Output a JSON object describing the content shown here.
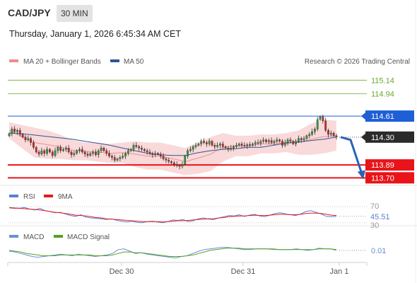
{
  "header": {
    "symbol": "CAD/JPY",
    "timeframe": "30 MIN",
    "datetime": "Thursday, January 1, 2026 6:45:34 AM CET"
  },
  "colors": {
    "green": "#6aaa2b",
    "blue_level": "#1e5fd6",
    "red_level": "#e8141a",
    "bollinger": "#f4b9b9",
    "ma50": "#2f5496",
    "rsi": "#5b7fd6",
    "nine_ma": "#e01b1b",
    "macd": "#6b8fd8",
    "macd_signal": "#56a020"
  },
  "chart_data": [
    {
      "type": "candlestick",
      "legend": [
        {
          "name": "MA 20 + Bollinger Bands",
          "color": "#f08a8a"
        },
        {
          "name": "MA 50",
          "color": "#2f5496"
        }
      ],
      "credit": "Research © 2026 Trading Central",
      "levels": [
        {
          "value": 115.14,
          "label": "115.14",
          "style": "green-line"
        },
        {
          "value": 114.94,
          "label": "114.94",
          "style": "green-line"
        },
        {
          "value": 114.61,
          "label": "114.61",
          "style": "blue-tag"
        },
        {
          "value": 114.3,
          "label": "114.30",
          "style": "last-price-tag"
        },
        {
          "value": 113.89,
          "label": "113.89",
          "style": "red-tag"
        },
        {
          "value": 113.7,
          "label": "113.70",
          "style": "red-tag"
        }
      ],
      "ylim": [
        113.62,
        115.31
      ],
      "x_ticks": [
        "Dec 30",
        "Dec 31",
        "Jan 1"
      ],
      "close": [
        114.35,
        114.42,
        114.38,
        114.4,
        114.34,
        114.3,
        114.26,
        114.28,
        114.22,
        114.15,
        114.08,
        114.05,
        114.1,
        114.06,
        114.12,
        114.08,
        114.03,
        114.1,
        114.15,
        114.1,
        114.12,
        114.14,
        114.08,
        114.04,
        114.06,
        114.1,
        114.12,
        114.08,
        114.05,
        114.03,
        114.06,
        114.08,
        114.04,
        114.1,
        114.14,
        114.1,
        114.06,
        114.02,
        114.0,
        113.96,
        113.98,
        114.0,
        114.02,
        114.06,
        114.1,
        114.12,
        114.18,
        114.16,
        114.14,
        114.12,
        114.1,
        114.08,
        114.06,
        114.04,
        114.06,
        114.05,
        114.02,
        113.98,
        113.96,
        113.94,
        113.92,
        113.9,
        113.88,
        113.87,
        113.9,
        114.02,
        114.1,
        114.12,
        114.16,
        114.18,
        114.2,
        114.24,
        114.22,
        114.2,
        114.24,
        114.18,
        114.16,
        114.18,
        114.2,
        114.16,
        114.14,
        114.12,
        114.14,
        114.16,
        114.18,
        114.2,
        114.18,
        114.17,
        114.19,
        114.18,
        114.2,
        114.22,
        114.21,
        114.24,
        114.26,
        114.23,
        114.25,
        114.22,
        114.24,
        114.26,
        114.24,
        114.18,
        114.22,
        114.26,
        114.24,
        114.2,
        114.24,
        114.28,
        114.26,
        114.28,
        114.32,
        114.34,
        114.38,
        114.42,
        114.56,
        114.6,
        114.54,
        114.4,
        114.34,
        114.36,
        114.32,
        114.3
      ],
      "ma50_line": [
        114.36,
        114.35,
        114.33,
        114.31,
        114.29,
        114.27,
        114.24,
        114.21,
        114.18,
        114.14,
        114.1,
        114.06,
        114.04,
        114.03,
        114.03,
        114.07,
        114.1,
        114.12,
        114.13,
        114.15,
        114.15,
        114.18,
        114.21,
        114.23,
        114.25,
        114.27,
        114.3
      ],
      "bollinger_upper": [
        114.52,
        114.48,
        114.44,
        114.4,
        114.34,
        114.26,
        114.22,
        114.22,
        114.2,
        114.22,
        114.24,
        114.22,
        114.22,
        114.18,
        114.14,
        114.22,
        114.3,
        114.36,
        114.32,
        114.32,
        114.34,
        114.34,
        114.36,
        114.4,
        114.5,
        114.56,
        114.54
      ],
      "bollinger_lower": [
        114.28,
        114.14,
        114.0,
        113.98,
        113.98,
        113.96,
        113.96,
        113.94,
        113.92,
        113.92,
        113.86,
        113.82,
        113.82,
        113.78,
        113.74,
        113.76,
        113.8,
        113.94,
        114.02,
        114.02,
        114.06,
        114.06,
        114.08,
        114.04,
        114.04,
        114.06,
        114.1
      ]
    },
    {
      "type": "line",
      "title": "RSI",
      "legend": [
        {
          "name": "RSI",
          "color": "#5b7fd6"
        },
        {
          "name": "9MA",
          "color": "#e01b1b"
        }
      ],
      "ylim": [
        28,
        72
      ],
      "reference_lines": [
        70,
        30
      ],
      "tick_labels": [
        "70",
        "45.51",
        "30"
      ],
      "series": [
        {
          "name": "RSI",
          "values": [
            68,
            67,
            66,
            68,
            64,
            62,
            66,
            60,
            58,
            55,
            56,
            52,
            48,
            46,
            50,
            44,
            42,
            41,
            40,
            38,
            40,
            36,
            34,
            32,
            34,
            31,
            30,
            33,
            34,
            32,
            30,
            33,
            37,
            36,
            38,
            33,
            35,
            40,
            42,
            39,
            38,
            42,
            45,
            48,
            47,
            50,
            46,
            49,
            51,
            47,
            45,
            49,
            53,
            55,
            52,
            50,
            48,
            52,
            58,
            60,
            56,
            52,
            46,
            45,
            46
          ]
        },
        {
          "name": "9MA",
          "values": [
            67,
            66,
            66,
            65,
            64,
            63,
            62,
            60,
            58,
            56,
            55,
            53,
            51,
            49,
            48,
            47,
            45,
            43,
            42,
            40,
            39,
            38,
            37,
            36,
            35,
            34,
            33,
            33,
            33,
            33,
            32,
            33,
            34,
            35,
            35,
            36,
            37,
            38,
            39,
            40,
            40,
            42,
            43,
            45,
            46,
            47,
            47,
            48,
            49,
            48,
            48,
            49,
            50,
            51,
            51,
            50,
            50,
            51,
            53,
            54,
            54,
            53,
            51,
            49,
            48
          ]
        }
      ]
    },
    {
      "type": "line",
      "title": "MACD",
      "legend": [
        {
          "name": "MACD",
          "color": "#6b8fd8"
        },
        {
          "name": "MACD Signal",
          "color": "#56a020"
        }
      ],
      "ylim": [
        -0.13,
        0.13
      ],
      "tick_labels": [
        "0.01"
      ],
      "series": [
        {
          "name": "MACD",
          "values": [
            0.0,
            -0.01,
            -0.03,
            -0.05,
            -0.07,
            -0.08,
            -0.07,
            -0.06,
            -0.05,
            -0.04,
            -0.05,
            -0.06,
            -0.04,
            -0.05,
            -0.06,
            -0.07,
            -0.06,
            -0.05,
            -0.03,
            0.02,
            0.03,
            0.0,
            -0.03,
            -0.02,
            -0.04,
            -0.05,
            -0.06,
            -0.07,
            -0.08,
            -0.09,
            -0.07,
            -0.06,
            -0.03,
            0.0,
            0.02,
            0.03,
            0.04,
            0.05,
            0.05,
            0.04,
            0.03,
            0.02,
            0.02,
            0.03,
            0.03,
            0.03,
            0.02,
            0.02,
            0.02,
            0.02,
            0.03,
            0.02,
            0.01,
            0.02,
            0.04,
            0.03,
            0.03,
            0.01
          ]
        },
        {
          "name": "MACD Signal",
          "values": [
            0.01,
            0.0,
            -0.01,
            -0.03,
            -0.04,
            -0.05,
            -0.06,
            -0.06,
            -0.06,
            -0.05,
            -0.05,
            -0.05,
            -0.05,
            -0.05,
            -0.05,
            -0.06,
            -0.06,
            -0.06,
            -0.05,
            -0.03,
            -0.01,
            -0.01,
            -0.02,
            -0.02,
            -0.03,
            -0.04,
            -0.05,
            -0.06,
            -0.07,
            -0.07,
            -0.07,
            -0.06,
            -0.05,
            -0.03,
            -0.01,
            0.01,
            0.02,
            0.03,
            0.04,
            0.04,
            0.04,
            0.03,
            0.03,
            0.03,
            0.03,
            0.03,
            0.03,
            0.02,
            0.02,
            0.02,
            0.02,
            0.02,
            0.02,
            0.02,
            0.03,
            0.03,
            0.03,
            0.02
          ]
        }
      ]
    }
  ]
}
